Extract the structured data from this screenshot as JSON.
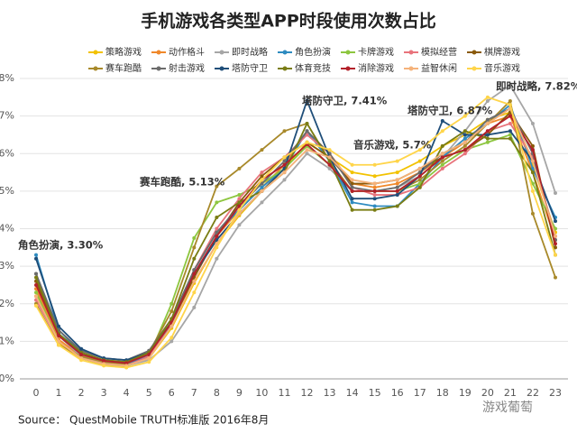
{
  "chart_data": {
    "type": "line",
    "title": "手机游戏各类型APP时段使用次数占比",
    "x": [
      0,
      1,
      2,
      3,
      4,
      5,
      6,
      7,
      8,
      9,
      10,
      11,
      12,
      13,
      14,
      15,
      16,
      17,
      18,
      19,
      20,
      21,
      22,
      23
    ],
    "xlim": [
      0,
      23
    ],
    "ylim": [
      0,
      8
    ],
    "yticks": [
      {
        "value": 0,
        "label": "0%"
      },
      {
        "value": 1,
        "label": "1%"
      },
      {
        "value": 2,
        "label": "2%"
      },
      {
        "value": 3,
        "label": "3%"
      },
      {
        "value": 4,
        "label": "4%"
      },
      {
        "value": 5,
        "label": "5%"
      },
      {
        "value": 6,
        "label": "6%"
      },
      {
        "value": 7,
        "label": "7%"
      },
      {
        "value": 8,
        "label": "8%"
      }
    ],
    "grid": true,
    "series": [
      {
        "name": "策略游戏",
        "color": "#f2c200",
        "values": [
          2.2,
          0.95,
          0.55,
          0.4,
          0.35,
          0.55,
          1.35,
          2.55,
          3.6,
          4.35,
          5.0,
          5.6,
          6.3,
          5.9,
          5.5,
          5.4,
          5.5,
          5.8,
          6.2,
          6.5,
          6.9,
          7.1,
          5.7,
          3.9
        ]
      },
      {
        "name": "动作格斗",
        "color": "#f0882a",
        "values": [
          2.4,
          1.05,
          0.6,
          0.42,
          0.38,
          0.6,
          1.45,
          2.7,
          3.8,
          4.5,
          5.1,
          5.7,
          6.6,
          6.0,
          5.2,
          5.1,
          5.2,
          5.5,
          5.9,
          6.3,
          6.8,
          7.0,
          5.5,
          3.7
        ]
      },
      {
        "name": "即时战略",
        "color": "#a6a6a6",
        "values": [
          2.8,
          1.15,
          0.6,
          0.42,
          0.35,
          0.5,
          1.0,
          1.9,
          3.2,
          4.1,
          4.7,
          5.3,
          6.0,
          5.6,
          5.0,
          5.0,
          5.1,
          5.4,
          5.9,
          6.6,
          7.4,
          7.82,
          6.8,
          4.95
        ]
      },
      {
        "name": "角色扮演",
        "color": "#2e8bc0",
        "values": [
          3.3,
          1.3,
          0.7,
          0.48,
          0.4,
          0.6,
          1.4,
          2.9,
          3.9,
          4.5,
          5.1,
          5.6,
          6.6,
          5.8,
          4.7,
          4.6,
          4.6,
          5.2,
          5.9,
          6.4,
          6.8,
          7.3,
          5.6,
          4.3
        ]
      },
      {
        "name": "卡牌游戏",
        "color": "#8dc63f",
        "values": [
          2.3,
          1.0,
          0.55,
          0.38,
          0.33,
          0.6,
          2.0,
          3.75,
          4.7,
          4.9,
          5.2,
          5.6,
          6.2,
          5.7,
          5.0,
          5.0,
          5.0,
          5.2,
          5.7,
          6.1,
          6.3,
          6.5,
          5.2,
          4.0
        ]
      },
      {
        "name": "模拟经营",
        "color": "#e8747c",
        "values": [
          2.1,
          1.0,
          0.55,
          0.4,
          0.35,
          0.6,
          1.5,
          2.9,
          4.0,
          4.8,
          5.5,
          5.9,
          6.5,
          6.0,
          5.1,
          4.9,
          4.9,
          5.1,
          5.6,
          6.0,
          6.6,
          6.8,
          5.9,
          3.8
        ]
      },
      {
        "name": "棋牌游戏",
        "color": "#8a5a0b",
        "values": [
          2.6,
          1.2,
          0.7,
          0.5,
          0.45,
          0.7,
          1.5,
          2.7,
          3.8,
          4.7,
          5.4,
          5.9,
          6.3,
          5.9,
          5.2,
          5.2,
          5.3,
          5.6,
          5.9,
          6.1,
          6.5,
          7.1,
          6.2,
          3.5
        ]
      },
      {
        "name": "赛车跑酷",
        "color": "#a8892a",
        "values": [
          2.0,
          0.9,
          0.6,
          0.45,
          0.4,
          0.7,
          1.8,
          3.5,
          5.13,
          5.6,
          6.1,
          6.6,
          6.8,
          5.8,
          5.0,
          5.0,
          5.0,
          5.3,
          5.8,
          6.2,
          6.8,
          7.4,
          4.4,
          2.7
        ]
      },
      {
        "name": "射击游戏",
        "color": "#6b6b6b",
        "values": [
          2.8,
          1.3,
          0.75,
          0.55,
          0.5,
          0.75,
          1.6,
          2.9,
          3.9,
          4.6,
          5.2,
          5.8,
          6.6,
          6.0,
          5.1,
          5.0,
          5.1,
          5.5,
          6.0,
          6.3,
          6.9,
          7.2,
          6.0,
          3.7
        ]
      },
      {
        "name": "塔防守卫",
        "color": "#1f4e79",
        "values": [
          3.2,
          1.4,
          0.8,
          0.55,
          0.5,
          0.7,
          1.5,
          2.8,
          3.7,
          4.4,
          5.0,
          5.6,
          7.41,
          5.9,
          4.8,
          4.8,
          4.9,
          5.4,
          6.87,
          6.5,
          6.5,
          6.6,
          5.8,
          4.2
        ]
      },
      {
        "name": "体育竞技",
        "color": "#7a7d14",
        "values": [
          2.7,
          1.2,
          0.7,
          0.5,
          0.45,
          0.7,
          1.6,
          3.2,
          4.3,
          4.7,
          5.0,
          5.5,
          6.8,
          5.8,
          4.5,
          4.5,
          4.6,
          5.1,
          6.2,
          6.6,
          6.4,
          6.4,
          5.5,
          3.3
        ]
      },
      {
        "name": "消除游戏",
        "color": "#b3202a",
        "values": [
          2.5,
          1.15,
          0.65,
          0.48,
          0.42,
          0.65,
          1.5,
          2.8,
          3.8,
          4.6,
          5.3,
          5.7,
          6.25,
          5.7,
          5.0,
          5.0,
          5.0,
          5.4,
          5.9,
          6.1,
          6.6,
          7.0,
          6.1,
          3.6
        ]
      },
      {
        "name": "益智休闲",
        "color": "#f5b27a",
        "values": [
          2.2,
          1.0,
          0.55,
          0.4,
          0.35,
          0.55,
          1.4,
          2.6,
          3.6,
          4.4,
          5.0,
          5.5,
          6.1,
          5.9,
          5.3,
          5.2,
          5.3,
          5.6,
          6.0,
          6.3,
          6.8,
          7.2,
          5.8,
          3.8
        ]
      },
      {
        "name": "音乐游戏",
        "color": "#ffd54a",
        "values": [
          1.95,
          0.9,
          0.5,
          0.35,
          0.3,
          0.45,
          1.1,
          2.3,
          3.5,
          4.5,
          5.3,
          5.9,
          6.3,
          6.1,
          5.7,
          5.7,
          5.8,
          6.1,
          6.6,
          7.0,
          7.5,
          7.3,
          5.0,
          3.3
        ]
      }
    ],
    "annotations": [
      "角色扮演, 3.30%",
      "赛车跑酷, 5.13%",
      "塔防守卫, 7.41%",
      "音乐游戏, 5.7%",
      "塔防守卫, 6.87%",
      "即时战略, 7.82%"
    ],
    "source": "Source： QuestMobile TRUTH标准版 2016年8月",
    "watermark": "游戏葡萄"
  }
}
